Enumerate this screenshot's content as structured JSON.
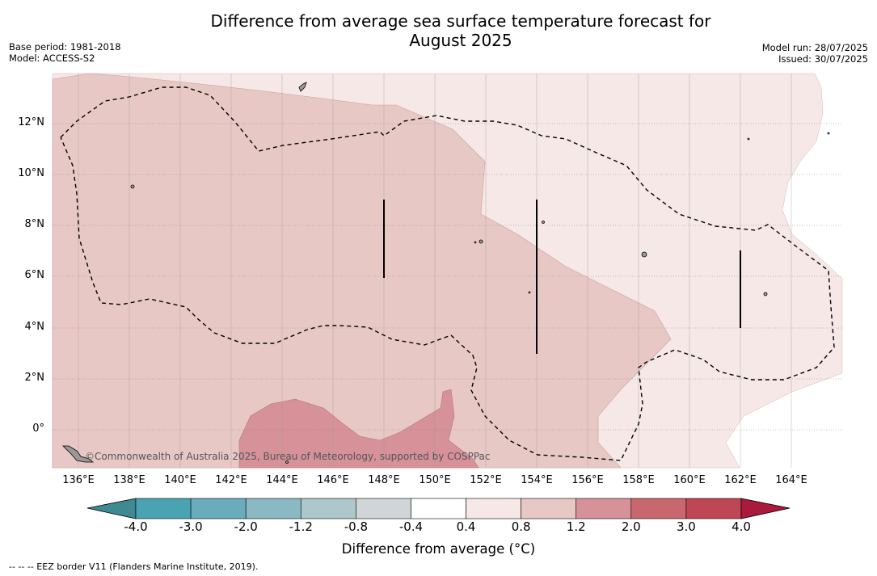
{
  "title_line1": "Difference from average sea surface temperature forecast for",
  "title_line2": "August 2025",
  "base_period": "Base period: 1981-2018",
  "model": "Model: ACCESS-S2",
  "model_run": "Model run: 28/07/2025",
  "issued": "Issued: 30/07/2025",
  "credit": "©Commonwealth of Australia 2025, Bureau of Meteorology, supported by COSPPac",
  "footnote": "--  --  -- EEZ border V11 (Flanders Marine Institute, 2019).",
  "map": {
    "lat_labels": [
      "12°N",
      "10°N",
      "8°N",
      "6°N",
      "4°N",
      "2°N",
      "0°"
    ],
    "lon_labels": [
      "136°E",
      "138°E",
      "140°E",
      "142°E",
      "144°E",
      "146°E",
      "148°E",
      "150°E",
      "152°E",
      "154°E",
      "156°E",
      "158°E",
      "160°E",
      "162°E",
      "164°E"
    ],
    "colors": {
      "band_0_4_0_8": "#f5e8e7",
      "band_0_8_1_2": "#e8c8c5",
      "band_1_2_2_0": "#d69298",
      "land": "#999999",
      "eez_border": "#000000"
    }
  },
  "colorbar": {
    "label": "Difference from average ($^\\circ$C)",
    "label_text": "Difference from average (",
    "label_unit": "°C)",
    "ticks": [
      "-4.0",
      "-3.0",
      "-2.0",
      "-1.2",
      "-0.8",
      "-0.4",
      "0.4",
      "0.8",
      "1.2",
      "2.0",
      "3.0",
      "4.0"
    ],
    "colors": [
      "#3e8a91",
      "#4aa3b3",
      "#6aacbc",
      "#8ab8c3",
      "#aec7ca",
      "#d0d6d7",
      "#ffffff",
      "#f5e8e7",
      "#e8c8c5",
      "#d69298",
      "#c9676f",
      "#bf4655",
      "#aa1a3a"
    ]
  }
}
